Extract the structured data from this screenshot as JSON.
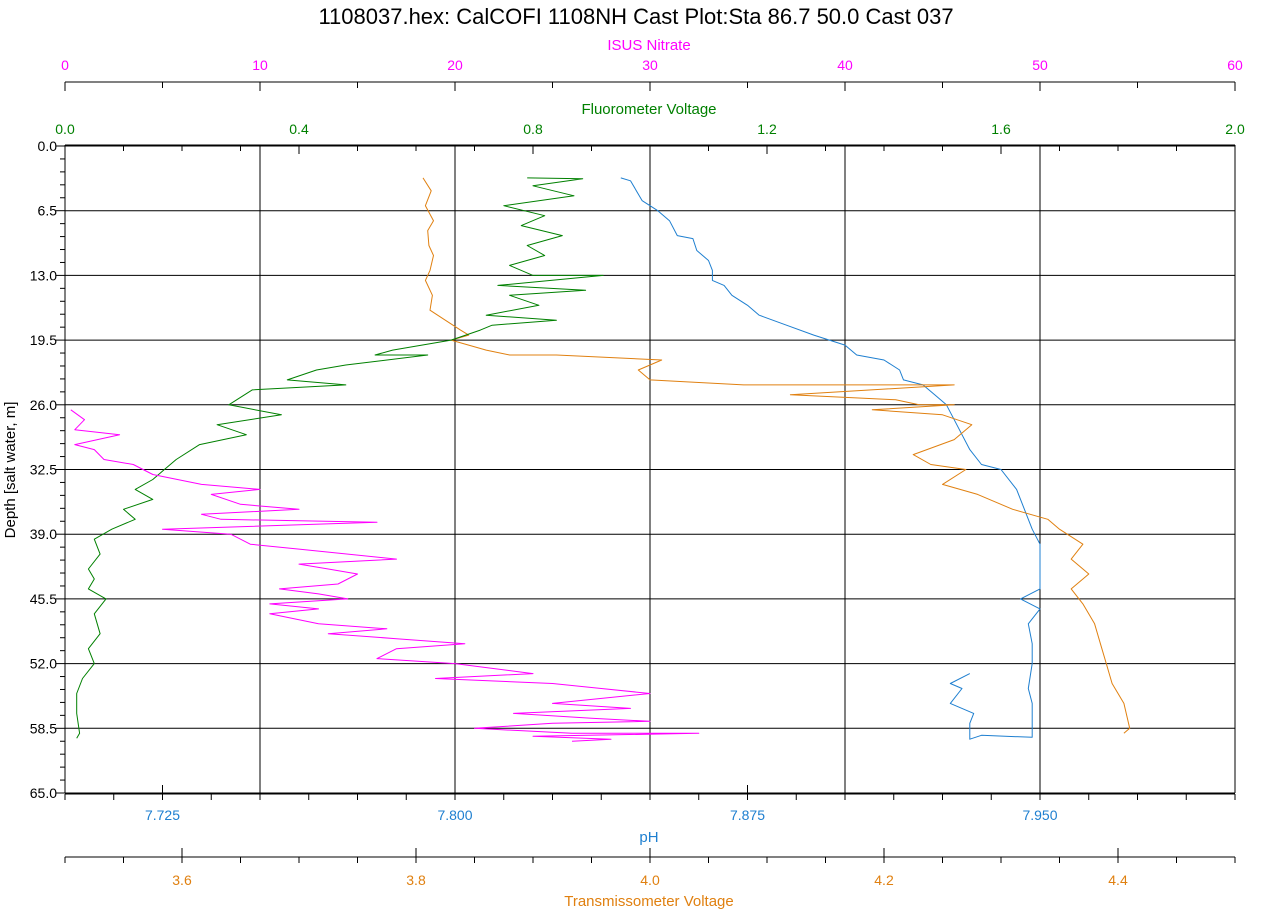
{
  "chart_data": {
    "type": "line",
    "title": "1108037.hex: CalCOFI 1108NH Cast Plot:Sta 86.7 50.0  Cast 037",
    "y_axis": {
      "label": "Depth [salt water, m]",
      "range": [
        0,
        65
      ],
      "ticks": [
        "0.0",
        "6.5",
        "13.0",
        "19.5",
        "26.0",
        "32.5",
        "39.0",
        "45.5",
        "52.0",
        "58.5",
        "65.0"
      ],
      "inverted": true
    },
    "grid": true,
    "axes": [
      {
        "id": "nitrate",
        "label": "ISUS Nitrate",
        "position": "top",
        "color": "#ff00ff",
        "range": [
          0,
          60
        ],
        "ticks": [
          "0",
          "10",
          "20",
          "30",
          "40",
          "50",
          "60"
        ]
      },
      {
        "id": "fluor",
        "label": "Fluorometer Voltage",
        "position": "top",
        "color": "#008000",
        "range": [
          0,
          2
        ],
        "ticks": [
          "0.0",
          "0.4",
          "0.8",
          "1.2",
          "1.6",
          "2.0"
        ]
      },
      {
        "id": "ph",
        "label": "pH",
        "position": "bottom",
        "color": "#1e7fd0",
        "range": [
          7.7,
          8.0
        ],
        "ticks": [
          "7.725",
          "7.800",
          "7.875",
          "7.950"
        ]
      },
      {
        "id": "trans",
        "label": "Transmissometer Voltage",
        "position": "bottom",
        "color": "#e08010",
        "range": [
          3.5,
          4.5
        ],
        "ticks": [
          "3.6",
          "3.8",
          "4.0",
          "4.2",
          "4.4"
        ]
      }
    ],
    "series": [
      {
        "name": "pH",
        "axis": "ph",
        "color": "#1e7fd0",
        "points": [
          [
            7.8425,
            3.2
          ],
          [
            7.845,
            3.5
          ],
          [
            7.848,
            5.5
          ],
          [
            7.852,
            6.5
          ],
          [
            7.855,
            7.5
          ],
          [
            7.857,
            9.0
          ],
          [
            7.861,
            9.3
          ],
          [
            7.862,
            10.5
          ],
          [
            7.865,
            11.5
          ],
          [
            7.866,
            12.5
          ],
          [
            7.866,
            13.5
          ],
          [
            7.869,
            14.0
          ],
          [
            7.871,
            15.0
          ],
          [
            7.875,
            16.0
          ],
          [
            7.878,
            17.0
          ],
          [
            7.885,
            18.0
          ],
          [
            7.892,
            19.0
          ],
          [
            7.9,
            20.0
          ],
          [
            7.903,
            21.0
          ],
          [
            7.91,
            21.5
          ],
          [
            7.914,
            22.5
          ],
          [
            7.915,
            23.5
          ],
          [
            7.92,
            24.0
          ],
          [
            7.923,
            25.0
          ],
          [
            7.926,
            26.0
          ],
          [
            7.928,
            27.5
          ],
          [
            7.93,
            29.0
          ],
          [
            7.932,
            30.5
          ],
          [
            7.935,
            32.0
          ],
          [
            7.94,
            32.5
          ],
          [
            7.944,
            34.5
          ],
          [
            7.946,
            36.5
          ],
          [
            7.948,
            38.5
          ],
          [
            7.95,
            40.0
          ],
          [
            7.95,
            43.0
          ],
          [
            7.95,
            44.5
          ],
          [
            7.945,
            45.5
          ],
          [
            7.95,
            46.5
          ],
          [
            7.947,
            48.0
          ],
          [
            7.948,
            50.0
          ],
          [
            7.948,
            52.0
          ],
          [
            7.947,
            54.5
          ],
          [
            7.948,
            56.0
          ],
          [
            7.948,
            58.5
          ],
          [
            7.948,
            59.4
          ],
          [
            7.935,
            59.2
          ],
          [
            7.932,
            59.6
          ],
          [
            7.932,
            58.0
          ],
          [
            7.933,
            57.0
          ],
          [
            7.927,
            56.0
          ],
          [
            7.93,
            54.5
          ],
          [
            7.927,
            54.0
          ],
          [
            7.932,
            53.0
          ]
        ]
      },
      {
        "name": "Transmissometer Voltage",
        "axis": "trans",
        "color": "#e08010",
        "points": [
          [
            3.806,
            3.2
          ],
          [
            3.813,
            4.5
          ],
          [
            3.808,
            6.0
          ],
          [
            3.815,
            7.5
          ],
          [
            3.81,
            8.5
          ],
          [
            3.811,
            10.0
          ],
          [
            3.815,
            11.0
          ],
          [
            3.812,
            12.5
          ],
          [
            3.808,
            13.5
          ],
          [
            3.814,
            15.0
          ],
          [
            3.812,
            16.5
          ],
          [
            3.825,
            17.5
          ],
          [
            3.838,
            18.5
          ],
          [
            3.845,
            19.0
          ],
          [
            3.83,
            19.5
          ],
          [
            3.86,
            20.5
          ],
          [
            3.88,
            21.0
          ],
          [
            3.92,
            21.0
          ],
          [
            4.01,
            21.5
          ],
          [
            3.99,
            22.5
          ],
          [
            4.0,
            23.5
          ],
          [
            4.08,
            24.0
          ],
          [
            4.13,
            24.0
          ],
          [
            4.26,
            24.0
          ],
          [
            4.12,
            25.0
          ],
          [
            4.21,
            25.5
          ],
          [
            4.23,
            26.0
          ],
          [
            4.26,
            26.0
          ],
          [
            4.19,
            26.5
          ],
          [
            4.25,
            27.0
          ],
          [
            4.275,
            28.0
          ],
          [
            4.26,
            29.5
          ],
          [
            4.225,
            31.0
          ],
          [
            4.24,
            32.0
          ],
          [
            4.27,
            32.5
          ],
          [
            4.25,
            34.0
          ],
          [
            4.28,
            35.0
          ],
          [
            4.31,
            36.5
          ],
          [
            4.34,
            37.5
          ],
          [
            4.35,
            38.5
          ],
          [
            4.37,
            40.0
          ],
          [
            4.36,
            41.5
          ],
          [
            4.375,
            43.0
          ],
          [
            4.36,
            44.5
          ],
          [
            4.37,
            46.0
          ],
          [
            4.38,
            48.0
          ],
          [
            4.385,
            50.0
          ],
          [
            4.39,
            52.0
          ],
          [
            4.395,
            54.0
          ],
          [
            4.405,
            56.0
          ],
          [
            4.41,
            58.5
          ],
          [
            4.405,
            59.0
          ]
        ]
      },
      {
        "name": "Fluorometer Voltage",
        "axis": "fluor",
        "color": "#008000",
        "points": [
          [
            0.79,
            3.2
          ],
          [
            0.885,
            3.3
          ],
          [
            0.8,
            4.0
          ],
          [
            0.87,
            5.0
          ],
          [
            0.75,
            6.0
          ],
          [
            0.82,
            7.0
          ],
          [
            0.78,
            8.0
          ],
          [
            0.85,
            9.0
          ],
          [
            0.79,
            10.0
          ],
          [
            0.82,
            11.0
          ],
          [
            0.76,
            12.0
          ],
          [
            0.8,
            13.0
          ],
          [
            0.92,
            13.0
          ],
          [
            0.74,
            14.0
          ],
          [
            0.89,
            14.5
          ],
          [
            0.76,
            15.0
          ],
          [
            0.81,
            16.0
          ],
          [
            0.72,
            17.0
          ],
          [
            0.84,
            17.5
          ],
          [
            0.73,
            18.0
          ],
          [
            0.71,
            18.5
          ],
          [
            0.66,
            19.5
          ],
          [
            0.56,
            20.5
          ],
          [
            0.53,
            21.0
          ],
          [
            0.62,
            21.0
          ],
          [
            0.48,
            22.0
          ],
          [
            0.43,
            22.5
          ],
          [
            0.38,
            23.5
          ],
          [
            0.48,
            24.0
          ],
          [
            0.32,
            24.5
          ],
          [
            0.28,
            26.0
          ],
          [
            0.37,
            27.0
          ],
          [
            0.26,
            28.0
          ],
          [
            0.31,
            29.0
          ],
          [
            0.23,
            30.0
          ],
          [
            0.19,
            31.5
          ],
          [
            0.17,
            32.5
          ],
          [
            0.15,
            33.5
          ],
          [
            0.12,
            34.5
          ],
          [
            0.15,
            35.5
          ],
          [
            0.1,
            36.5
          ],
          [
            0.12,
            37.5
          ],
          [
            0.08,
            38.5
          ],
          [
            0.05,
            39.5
          ],
          [
            0.06,
            41.0
          ],
          [
            0.04,
            42.5
          ],
          [
            0.05,
            43.5
          ],
          [
            0.04,
            44.5
          ],
          [
            0.07,
            45.5
          ],
          [
            0.05,
            47.0
          ],
          [
            0.06,
            49.0
          ],
          [
            0.04,
            50.5
          ],
          [
            0.05,
            52.0
          ],
          [
            0.03,
            53.5
          ],
          [
            0.02,
            55.0
          ],
          [
            0.02,
            57.0
          ],
          [
            0.025,
            59.0
          ],
          [
            0.02,
            59.5
          ]
        ]
      },
      {
        "name": "ISUS Nitrate",
        "axis": "nitrate",
        "color": "#ff00ff",
        "points": [
          [
            0.3,
            26.5
          ],
          [
            1.0,
            27.5
          ],
          [
            0.5,
            28.5
          ],
          [
            2.8,
            29.0
          ],
          [
            0.5,
            30.0
          ],
          [
            1.5,
            30.5
          ],
          [
            2.0,
            31.5
          ],
          [
            3.5,
            32.0
          ],
          [
            4.5,
            33.0
          ],
          [
            7.0,
            34.0
          ],
          [
            10.0,
            34.5
          ],
          [
            7.5,
            35.0
          ],
          [
            9.0,
            36.0
          ],
          [
            12.0,
            36.5
          ],
          [
            7.0,
            37.0
          ],
          [
            8.0,
            37.5
          ],
          [
            16.0,
            37.8
          ],
          [
            5.0,
            38.5
          ],
          [
            8.5,
            39.0
          ],
          [
            9.5,
            40.0
          ],
          [
            12.0,
            40.5
          ],
          [
            17.0,
            41.5
          ],
          [
            12.0,
            42.0
          ],
          [
            13.5,
            42.5
          ],
          [
            15.0,
            43.0
          ],
          [
            14.0,
            44.0
          ],
          [
            11.0,
            44.5
          ],
          [
            13.0,
            45.0
          ],
          [
            14.5,
            45.5
          ],
          [
            10.5,
            46.0
          ],
          [
            13.0,
            46.5
          ],
          [
            10.5,
            47.0
          ],
          [
            13.0,
            48.0
          ],
          [
            16.5,
            48.5
          ],
          [
            13.5,
            49.0
          ],
          [
            17.0,
            49.5
          ],
          [
            20.5,
            50.0
          ],
          [
            17.0,
            50.5
          ],
          [
            16.0,
            51.5
          ],
          [
            20.0,
            52.0
          ],
          [
            24.0,
            53.0
          ],
          [
            19.0,
            53.5
          ],
          [
            25.0,
            54.0
          ],
          [
            27.5,
            54.5
          ],
          [
            30.0,
            55.0
          ],
          [
            25.0,
            56.0
          ],
          [
            29.0,
            56.5
          ],
          [
            23.0,
            57.0
          ],
          [
            27.0,
            57.5
          ],
          [
            30.0,
            57.8
          ],
          [
            25.0,
            58.0
          ],
          [
            21.0,
            58.5
          ],
          [
            26.0,
            59.0
          ],
          [
            32.5,
            59.0
          ],
          [
            24.0,
            59.3
          ],
          [
            28.0,
            59.6
          ],
          [
            26.0,
            59.8
          ]
        ]
      }
    ]
  }
}
